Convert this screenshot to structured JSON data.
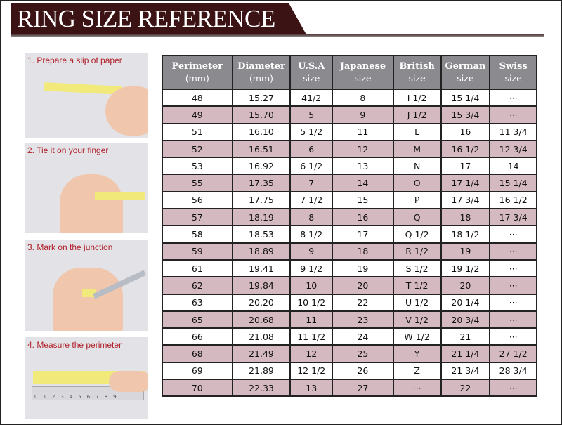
{
  "title": "RING SIZE REFERENCE",
  "steps": [
    {
      "label": "1. Prepare a slip of paper"
    },
    {
      "label": "2. Tie it on your finger"
    },
    {
      "label": "3. Mark on the junction"
    },
    {
      "label": "4. Measure the perimeter"
    }
  ],
  "ruler_ticks": "0123456789",
  "table": {
    "headers": [
      {
        "main": "Perimeter",
        "sub": "(mm)"
      },
      {
        "main": "Diameter",
        "sub": "(mm)"
      },
      {
        "main": "U.S.A",
        "sub": "size"
      },
      {
        "main": "Japanese",
        "sub": "size"
      },
      {
        "main": "British",
        "sub": "size"
      },
      {
        "main": "German",
        "sub": "size"
      },
      {
        "main": "Swiss",
        "sub": "size"
      }
    ],
    "rows": [
      [
        "48",
        "15.27",
        "41/2",
        "8",
        "I 1/2",
        "15 1/4",
        "···"
      ],
      [
        "49",
        "15.70",
        "5",
        "9",
        "J 1/2",
        "15 3/4",
        "···"
      ],
      [
        "51",
        "16.10",
        "5 1/2",
        "11",
        "L",
        "16",
        "11 3/4"
      ],
      [
        "52",
        "16.51",
        "6",
        "12",
        "M",
        "16 1/2",
        "12 3/4"
      ],
      [
        "53",
        "16.92",
        "6 1/2",
        "13",
        "N",
        "17",
        "14"
      ],
      [
        "55",
        "17.35",
        "7",
        "14",
        "O",
        "17 1/4",
        "15 1/4"
      ],
      [
        "56",
        "17.75",
        "7 1/2",
        "15",
        "P",
        "17 3/4",
        "16 1/2"
      ],
      [
        "57",
        "18.19",
        "8",
        "16",
        "Q",
        "18",
        "17 3/4"
      ],
      [
        "58",
        "18.53",
        "8 1/2",
        "17",
        "Q  1/2",
        "18 1/2",
        "···"
      ],
      [
        "59",
        "18.89",
        "9",
        "18",
        "R 1/2",
        "19",
        "···"
      ],
      [
        "61",
        "19.41",
        "9 1/2",
        "19",
        "S 1/2",
        "19 1/2",
        "···"
      ],
      [
        "62",
        "19.84",
        "10",
        "20",
        "T 1/2",
        "20",
        "···"
      ],
      [
        "63",
        "20.20",
        "10 1/2",
        "22",
        "U 1/2",
        "20 1/4",
        "···"
      ],
      [
        "65",
        "20.68",
        "11",
        "23",
        "V 1/2",
        "20 3/4",
        "···"
      ],
      [
        "66",
        "21.08",
        "11 1/2",
        "24",
        "W 1/2",
        "21",
        "···"
      ],
      [
        "68",
        "21.49",
        "12",
        "25",
        "Y",
        "21 1/4",
        "27 1/2"
      ],
      [
        "69",
        "21.89",
        "12 1/2",
        "26",
        "Z",
        "21 3/4",
        "28 3/4"
      ],
      [
        "70",
        "22.33",
        "13",
        "27",
        "···",
        "22",
        "···"
      ]
    ]
  },
  "colors": {
    "banner": "#3c1315",
    "header": "#8b8a8f",
    "row_alt": "#d5b9c0",
    "step_text": "#b0202a"
  }
}
